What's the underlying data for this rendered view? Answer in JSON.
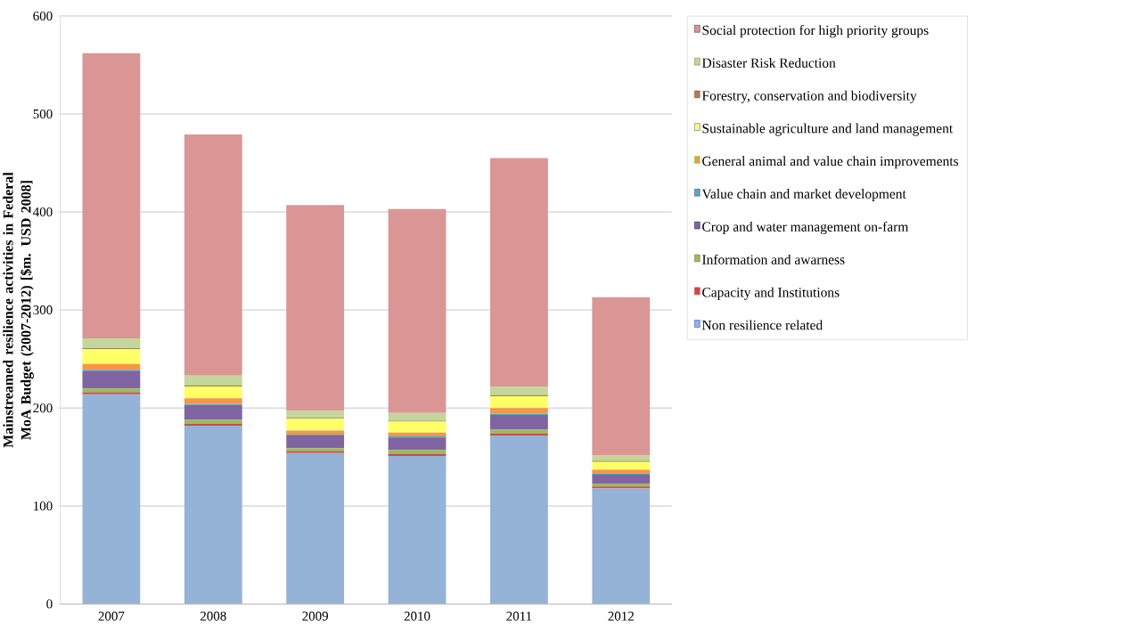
{
  "chart_data": {
    "type": "bar",
    "stacked": true,
    "grid": "y",
    "legend": "right",
    "ylabel": "Mainstreamed resilience activities in Federal MoA Budget (2007-2012) [$m. USD 2008]",
    "categories": [
      "2007",
      "2008",
      "2009",
      "2010",
      "2011",
      "2012"
    ],
    "ylim": [
      0,
      600
    ],
    "yticks": [
      0,
      100,
      200,
      300,
      400,
      500,
      600
    ],
    "series": [
      {
        "name": "Non resilience related",
        "color": "#95b3d7",
        "values": [
          214,
          182,
          154,
          151,
          172,
          118
        ]
      },
      {
        "name": "Capacity and Institutions",
        "color": "#c0504d",
        "values": [
          2,
          2,
          2,
          2,
          2,
          2
        ]
      },
      {
        "name": "Information and awarness",
        "color": "#9bbb59",
        "values": [
          4,
          4,
          3,
          4,
          4,
          3
        ]
      },
      {
        "name": "Crop and water management on-farm",
        "color": "#8064a2",
        "values": [
          18,
          15,
          13,
          13,
          15,
          9
        ]
      },
      {
        "name": "Value chain and market development",
        "color": "#4bacc6",
        "values": [
          1,
          1,
          1,
          1,
          1,
          1
        ]
      },
      {
        "name": "General animal and value chain improvements",
        "color": "#f79646",
        "values": [
          6,
          6,
          4,
          4,
          6,
          4
        ]
      },
      {
        "name": "Sustainable agriculture and land management",
        "color": "#ffff66",
        "values": [
          15,
          12,
          12,
          11,
          12,
          8
        ]
      },
      {
        "name": "Forestry, conservation and biodiversity",
        "color": "#948a54",
        "values": [
          1,
          1,
          1,
          1,
          1,
          1
        ]
      },
      {
        "name": "Disaster Risk Reduction",
        "color": "#c3d69b",
        "values": [
          10,
          10,
          7,
          8,
          9,
          6
        ]
      },
      {
        "name": "Social protection for high priority groups",
        "color": "#da9694",
        "values": [
          291,
          246,
          210,
          208,
          233,
          161
        ]
      }
    ]
  }
}
